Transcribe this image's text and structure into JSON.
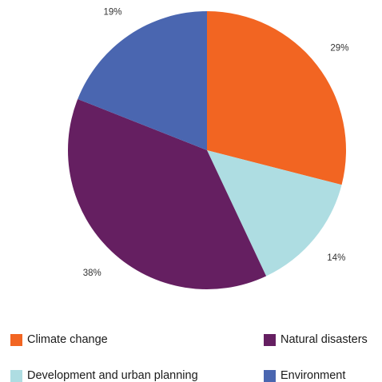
{
  "chart_data": {
    "type": "pie",
    "categories": [
      "Climate change",
      "Development and urban planning",
      "Natural disasters",
      "Environment"
    ],
    "values": [
      29,
      14,
      38,
      19
    ],
    "value_labels": [
      "29%",
      "14%",
      "38%",
      "19%"
    ],
    "colors": [
      "#f26522",
      "#aedde2",
      "#651f61",
      "#4a66b0"
    ],
    "start_angle_deg": 0,
    "direction": "clockwise",
    "legend_position": "bottom"
  },
  "legend": [
    {
      "label": "Climate change",
      "color": "#f26522"
    },
    {
      "label": "Natural disasters",
      "color": "#651f61"
    },
    {
      "label": "Development and urban planning",
      "color": "#aedde2"
    },
    {
      "label": "Environment",
      "color": "#4a66b0"
    }
  ]
}
